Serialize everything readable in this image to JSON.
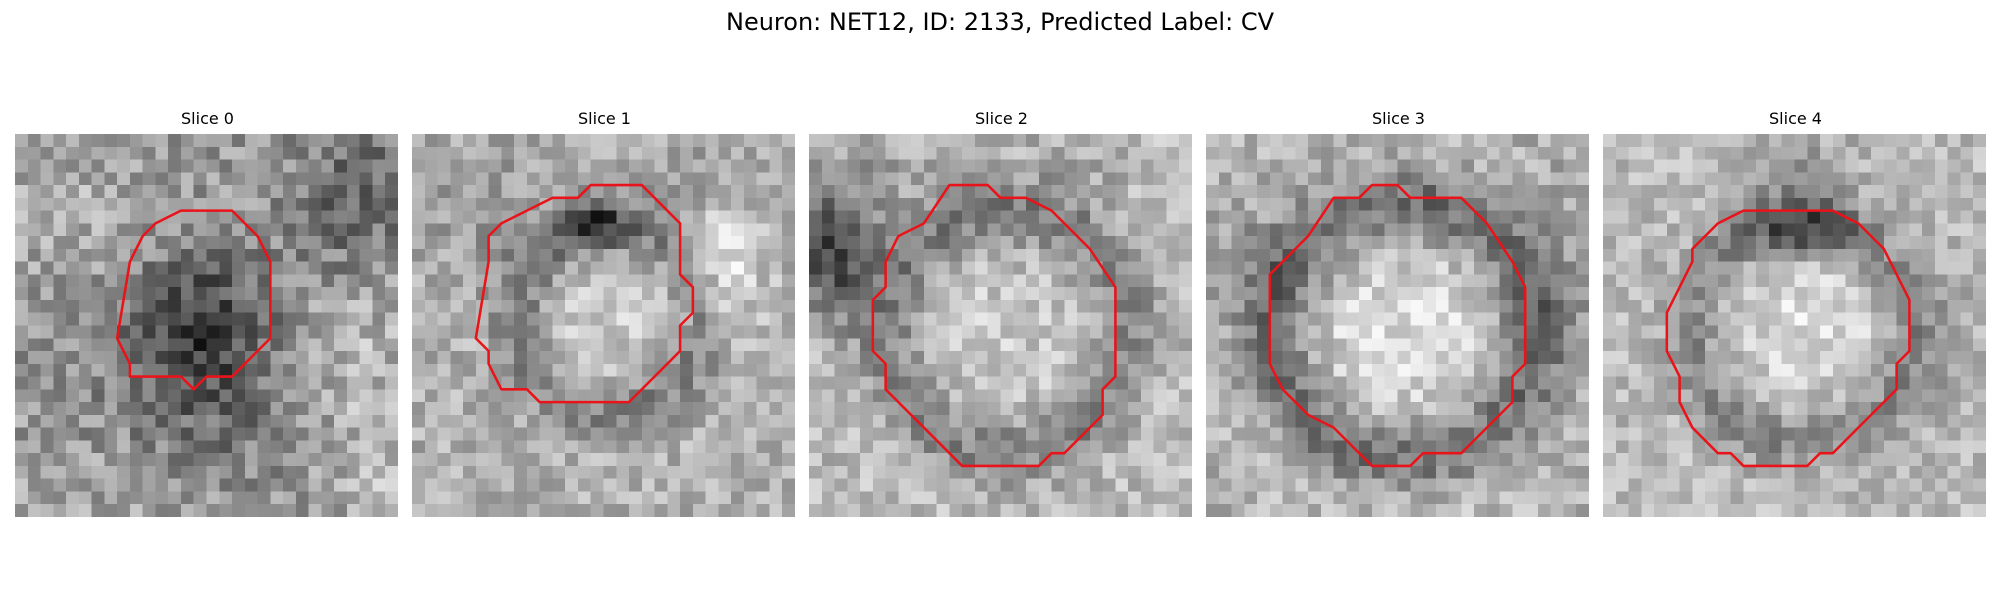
{
  "figure": {
    "title": "Neuron: NET12, ID: 2133, Predicted Label: CV"
  },
  "colors": {
    "contour": "#e8141a",
    "background": "#ffffff"
  },
  "slices": [
    {
      "label": "Slice 0"
    },
    {
      "label": "Slice 1"
    },
    {
      "label": "Slice 2"
    },
    {
      "label": "Slice 3"
    },
    {
      "label": "Slice 4"
    }
  ]
}
